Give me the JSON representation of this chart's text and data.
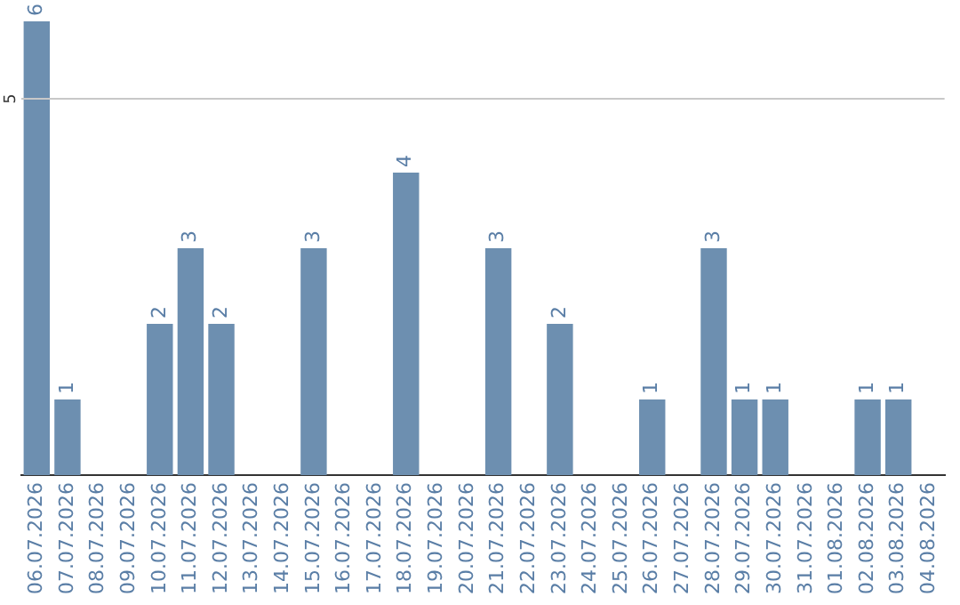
{
  "chart_data": {
    "type": "bar",
    "categories": [
      "06.07.2026",
      "07.07.2026",
      "08.07.2026",
      "09.07.2026",
      "10.07.2026",
      "11.07.2026",
      "12.07.2026",
      "13.07.2026",
      "14.07.2026",
      "15.07.2026",
      "16.07.2026",
      "17.07.2026",
      "18.07.2026",
      "19.07.2026",
      "20.07.2026",
      "21.07.2026",
      "22.07.2026",
      "23.07.2026",
      "24.07.2026",
      "25.07.2026",
      "26.07.2026",
      "27.07.2026",
      "28.07.2026",
      "29.07.2026",
      "30.07.2026",
      "31.07.2026",
      "01.08.2026",
      "02.08.2026",
      "03.08.2026",
      "04.08.2026"
    ],
    "values": [
      6,
      1,
      0,
      0,
      2,
      3,
      2,
      0,
      0,
      3,
      0,
      0,
      4,
      0,
      0,
      3,
      0,
      2,
      0,
      0,
      1,
      0,
      3,
      1,
      1,
      0,
      0,
      1,
      1,
      0
    ],
    "value_labels": [
      "6",
      "1",
      null,
      null,
      "2",
      "3",
      "2",
      null,
      null,
      "3",
      null,
      null,
      "4",
      null,
      null,
      "3",
      null,
      "2",
      null,
      null,
      "1",
      null,
      "3",
      "1",
      "1",
      null,
      null,
      "1",
      "1",
      null
    ],
    "color": "#6d8fb0",
    "ref_lines": [
      {
        "axis": "y",
        "value": 5,
        "label": "5",
        "color": "#c8c8c8"
      }
    ],
    "legend": false
  }
}
